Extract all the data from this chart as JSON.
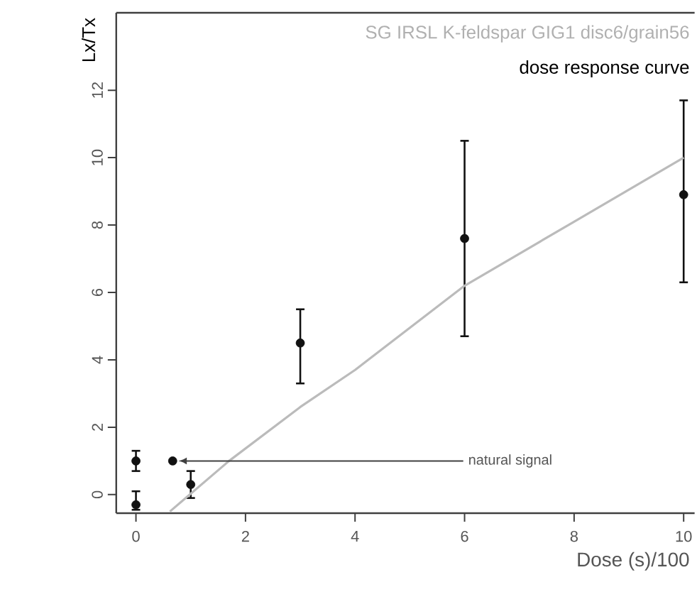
{
  "chart_data": {
    "type": "scatter",
    "title": "SG IRSL K-feldspar GIG1 disc6/grain56",
    "subtitle": "dose response curve",
    "xlabel": "Dose (s)/100",
    "ylabel": "Lx/Tx",
    "annotations": [
      "natural signal"
    ],
    "series": [
      {
        "type": "scatter",
        "color": "#111111",
        "x": [
          0,
          0,
          1,
          3,
          6,
          10
        ],
        "values": [
          -0.3,
          1.0,
          0.3,
          4.5,
          7.6,
          8.9
        ],
        "errors": [
          [
            -0.45,
            0.1
          ],
          [
            0.7,
            1.3
          ],
          [
            -0.1,
            0.7
          ],
          [
            3.3,
            5.5
          ],
          [
            4.7,
            10.5
          ],
          [
            6.3,
            11.7
          ]
        ]
      },
      {
        "type": "scatter",
        "color": "#111111",
        "x": [
          0.67
        ],
        "values": [
          1.0
        ]
      },
      {
        "type": "line",
        "color": "#bbbbbb",
        "x": [
          0.62,
          1.7,
          3,
          4,
          6,
          8,
          10
        ],
        "values": [
          -0.5,
          1.0,
          2.6,
          3.7,
          6.2,
          8.1,
          10.0
        ]
      }
    ],
    "xlim": [
      -0.36,
      10.2
    ],
    "ylim": [
      -0.55,
      14.3
    ],
    "xticks": [
      0,
      2,
      4,
      6,
      8,
      10
    ],
    "yticks": [
      0,
      2,
      4,
      6,
      8,
      10,
      12
    ]
  }
}
